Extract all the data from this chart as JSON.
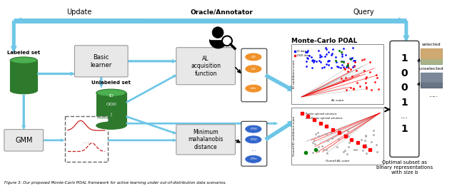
{
  "bg_color": "#ffffff",
  "blue": "#6ec6e6",
  "green": "#2d7a2d",
  "green_light": "#4caf50",
  "orange": "#f0922b",
  "blue_node": "#3366cc",
  "dark": "#333333",
  "gray_box": "#d8d8d8",
  "labels": {
    "update": "Update",
    "oracle": "Oracle/Annotator",
    "query": "Query",
    "labeled_set": "Labeled set",
    "basic_learner": "Basic\nlearner",
    "unlabeled_set": "Unlabeled set",
    "al_function": "AL\nacquisition\nfunction",
    "gmm": "GMM",
    "min_dist": "Minimum\nmahalanobis\ndistance",
    "monte_carlo": "Monte-Carlo POAL",
    "optimal_subset": "Optimal subset as\nbinary representations\nwith size b",
    "selected": "selected",
    "unselected": "unselected",
    "al_score": "AL score",
    "id_conf": "ID confidence score",
    "overall_al": "Overall AL score",
    "overall_id": "Overall ID confidence score"
  },
  "figure_caption": "Figure 3: Our proposed Monte-Carlo POAL framework for active learning under out-of-distribution data scenarios."
}
